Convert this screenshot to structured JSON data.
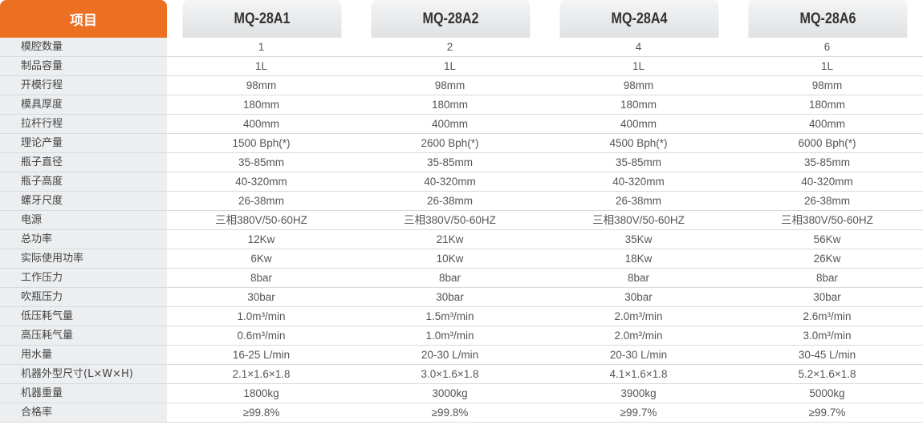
{
  "header": {
    "item": "项目",
    "models": [
      "MQ-28A1",
      "MQ-28A2",
      "MQ-28A4",
      "MQ-28A6"
    ]
  },
  "colors": {
    "accent": "#ec6f22",
    "label_bg": "#eceef0"
  },
  "rows": [
    {
      "label": "模腔数量",
      "values": [
        "1",
        "2",
        "4",
        "6"
      ]
    },
    {
      "label": "制品容量",
      "values": [
        "1L",
        "1L",
        "1L",
        "1L"
      ]
    },
    {
      "label": "开模行程",
      "values": [
        "98mm",
        "98mm",
        "98mm",
        "98mm"
      ]
    },
    {
      "label": "模具厚度",
      "values": [
        "180mm",
        "180mm",
        "180mm",
        "180mm"
      ]
    },
    {
      "label": "拉杆行程",
      "values": [
        "400mm",
        "400mm",
        "400mm",
        "400mm"
      ]
    },
    {
      "label": "理论产量",
      "values": [
        "1500 Bph(*)",
        "2600 Bph(*)",
        "4500 Bph(*)",
        "6000 Bph(*)"
      ]
    },
    {
      "label": "瓶子直径",
      "values": [
        "35-85mm",
        "35-85mm",
        "35-85mm",
        "35-85mm"
      ]
    },
    {
      "label": "瓶子高度",
      "values": [
        "40-320mm",
        "40-320mm",
        "40-320mm",
        "40-320mm"
      ]
    },
    {
      "label": "螺牙尺度",
      "values": [
        "26-38mm",
        "26-38mm",
        "26-38mm",
        "26-38mm"
      ]
    },
    {
      "label": "电源",
      "values": [
        "三相380V/50-60HZ",
        "三相380V/50-60HZ",
        "三相380V/50-60HZ",
        "三相380V/50-60HZ"
      ]
    },
    {
      "label": "总功率",
      "values": [
        "12Kw",
        "21Kw",
        "35Kw",
        "56Kw"
      ]
    },
    {
      "label": "实际使用功率",
      "values": [
        "6Kw",
        "10Kw",
        "18Kw",
        "26Kw"
      ]
    },
    {
      "label": "工作压力",
      "values": [
        "8bar",
        "8bar",
        "8bar",
        "8bar"
      ]
    },
    {
      "label": "吹瓶压力",
      "values": [
        "30bar",
        "30bar",
        "30bar",
        "30bar"
      ]
    },
    {
      "label": "低压耗气量",
      "values": [
        "1.0m³/min",
        "1.5m³/min",
        "2.0m³/min",
        "2.6m³/min"
      ]
    },
    {
      "label": "高压耗气量",
      "values": [
        "0.6m³/min",
        "1.0m³/min",
        "2.0m³/min",
        "3.0m³/min"
      ]
    },
    {
      "label": "用水量",
      "values": [
        "16-25 L/min",
        "20-30 L/min",
        "20-30 L/min",
        "30-45 L/min"
      ]
    },
    {
      "label": "机器外型尺寸(L×W×H)",
      "values": [
        "2.1×1.6×1.8",
        "3.0×1.6×1.8",
        "4.1×1.6×1.8",
        "5.2×1.6×1.8"
      ]
    },
    {
      "label": "机器重量",
      "values": [
        "1800kg",
        "3000kg",
        "3900kg",
        "5000kg"
      ]
    },
    {
      "label": "合格率",
      "values": [
        "≥99.8%",
        "≥99.8%",
        "≥99.7%",
        "≥99.7%"
      ]
    }
  ]
}
